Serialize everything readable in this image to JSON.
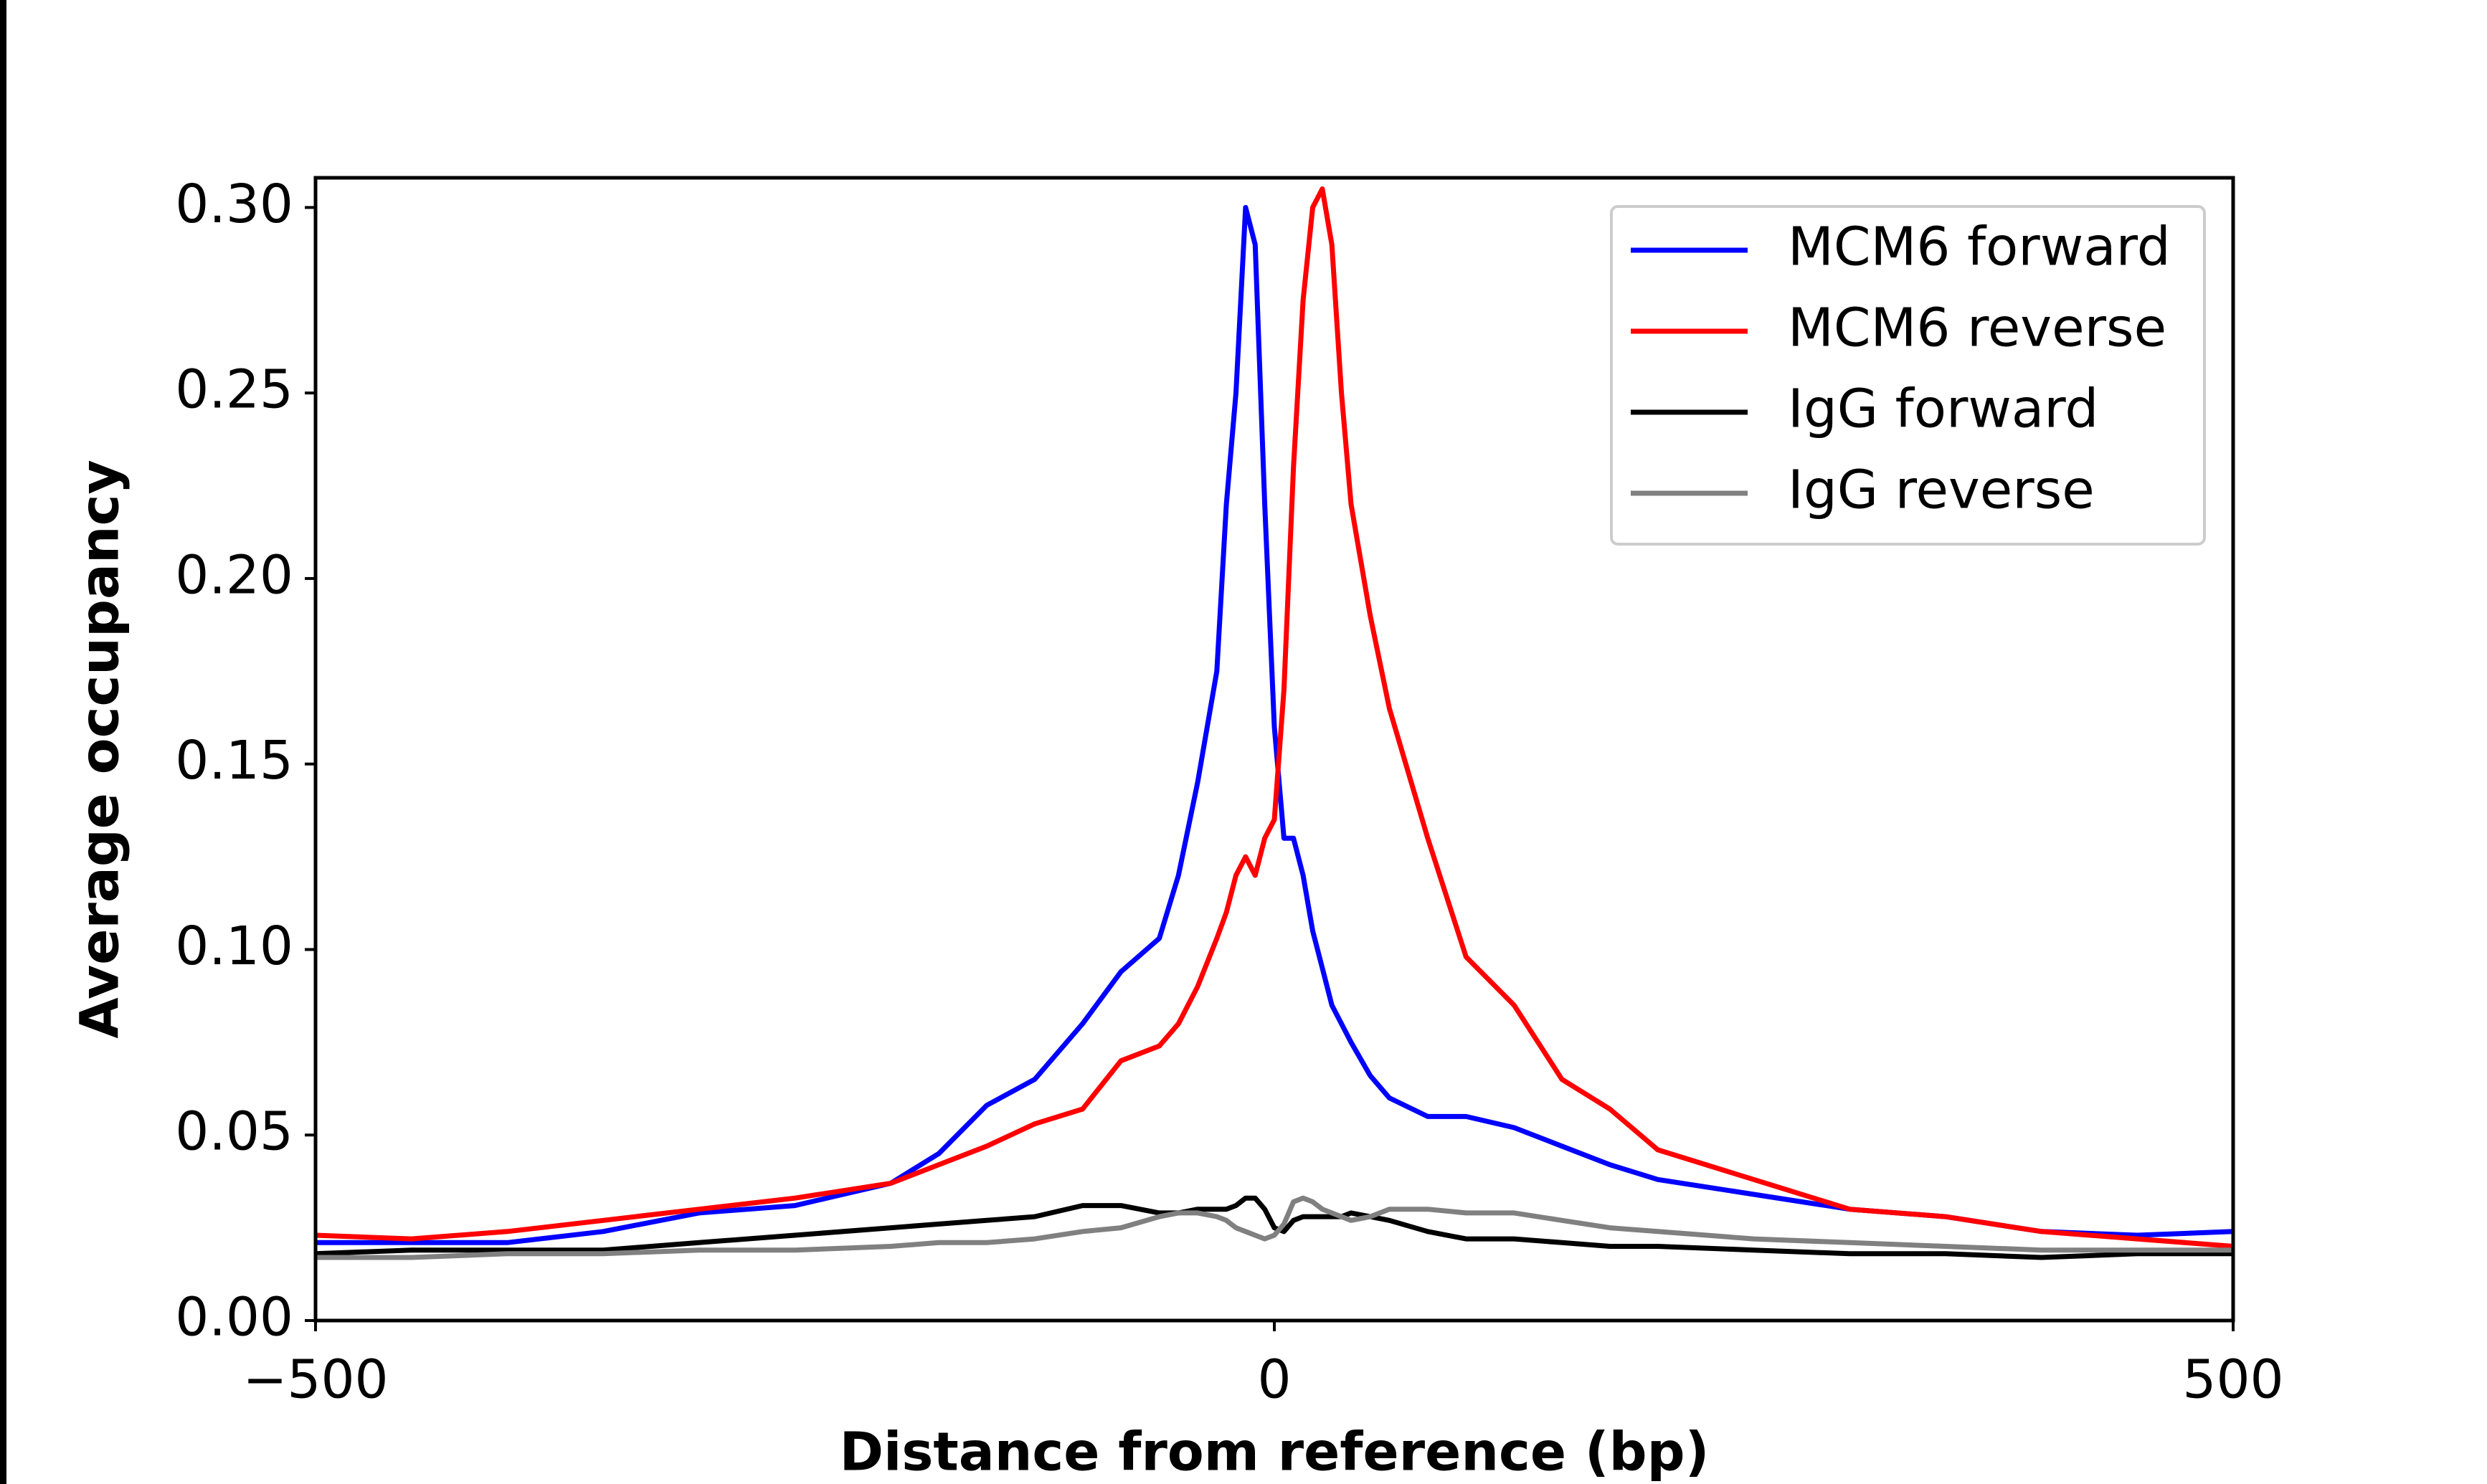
{
  "chart_data": {
    "type": "line",
    "x_label": "Distance from reference (bp)",
    "y_label": "Average occupancy",
    "x": [
      -500,
      -450,
      -400,
      -350,
      -300,
      -250,
      -200,
      -175,
      -150,
      -125,
      -100,
      -80,
      -60,
      -50,
      -40,
      -30,
      -25,
      -20,
      -15,
      -10,
      -5,
      0,
      5,
      10,
      15,
      20,
      25,
      30,
      35,
      40,
      50,
      60,
      80,
      100,
      125,
      150,
      175,
      200,
      250,
      300,
      350,
      400,
      450,
      500
    ],
    "series": [
      {
        "name": "MCM6 forward",
        "color": "#0000ff",
        "values": [
          0.021,
          0.021,
          0.021,
          0.024,
          0.029,
          0.031,
          0.037,
          0.045,
          0.058,
          0.065,
          0.08,
          0.094,
          0.103,
          0.12,
          0.145,
          0.175,
          0.22,
          0.25,
          0.3,
          0.29,
          0.22,
          0.16,
          0.13,
          0.13,
          0.12,
          0.105,
          0.095,
          0.085,
          0.08,
          0.075,
          0.066,
          0.06,
          0.055,
          0.055,
          0.052,
          0.047,
          0.042,
          0.038,
          0.034,
          0.03,
          0.028,
          0.024,
          0.023,
          0.024
        ]
      },
      {
        "name": "MCM6 reverse",
        "color": "#ff0000",
        "values": [
          0.023,
          0.022,
          0.024,
          0.027,
          0.03,
          0.033,
          0.037,
          0.042,
          0.047,
          0.053,
          0.057,
          0.07,
          0.074,
          0.08,
          0.09,
          0.103,
          0.11,
          0.12,
          0.125,
          0.12,
          0.13,
          0.135,
          0.17,
          0.23,
          0.275,
          0.3,
          0.305,
          0.29,
          0.25,
          0.22,
          0.19,
          0.165,
          0.13,
          0.098,
          0.085,
          0.065,
          0.057,
          0.046,
          0.038,
          0.03,
          0.028,
          0.024,
          0.022,
          0.02
        ]
      },
      {
        "name": "IgG forward",
        "color": "#000000",
        "values": [
          0.018,
          0.019,
          0.019,
          0.019,
          0.021,
          0.023,
          0.025,
          0.026,
          0.027,
          0.028,
          0.031,
          0.031,
          0.029,
          0.029,
          0.03,
          0.03,
          0.03,
          0.031,
          0.033,
          0.033,
          0.03,
          0.025,
          0.024,
          0.027,
          0.028,
          0.028,
          0.028,
          0.028,
          0.028,
          0.029,
          0.028,
          0.027,
          0.024,
          0.022,
          0.022,
          0.021,
          0.02,
          0.02,
          0.019,
          0.018,
          0.018,
          0.017,
          0.018,
          0.018
        ]
      },
      {
        "name": "IgG reverse",
        "color": "#808080",
        "values": [
          0.017,
          0.017,
          0.018,
          0.018,
          0.019,
          0.019,
          0.02,
          0.021,
          0.021,
          0.022,
          0.024,
          0.025,
          0.028,
          0.029,
          0.029,
          0.028,
          0.027,
          0.025,
          0.024,
          0.023,
          0.022,
          0.023,
          0.026,
          0.032,
          0.033,
          0.032,
          0.03,
          0.029,
          0.028,
          0.027,
          0.028,
          0.03,
          0.03,
          0.029,
          0.029,
          0.027,
          0.025,
          0.024,
          0.022,
          0.021,
          0.02,
          0.019,
          0.019,
          0.019
        ]
      }
    ],
    "xlim": [
      -500,
      500
    ],
    "xticks": [
      {
        "value": -500,
        "label": "−500"
      },
      0,
      500
    ],
    "ylim": [
      0,
      0.308
    ],
    "yticks": [
      {
        "value": 0,
        "label": "0.00"
      },
      {
        "value": 0.05,
        "label": "0.05"
      },
      {
        "value": 0.1,
        "label": "0.10"
      },
      {
        "value": 0.15,
        "label": "0.15"
      },
      {
        "value": 0.2,
        "label": "0.20"
      },
      {
        "value": 0.25,
        "label": "0.25"
      },
      {
        "value": 0.3,
        "label": "0.30"
      }
    ],
    "legend": "upper right",
    "grid": false
  }
}
